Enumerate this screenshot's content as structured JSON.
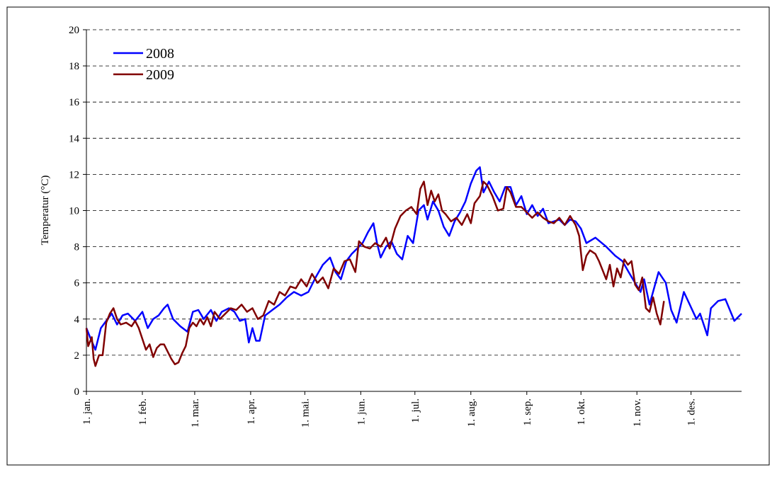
{
  "chart_data": {
    "type": "line",
    "y_label": "Temperatur (°C)",
    "ylim": [
      0,
      20
    ],
    "yticks": [
      0,
      2,
      4,
      6,
      8,
      10,
      12,
      14,
      16,
      18,
      20
    ],
    "xlim": [
      1,
      364
    ],
    "xticks": [
      {
        "value": 1,
        "label": "1. jan."
      },
      {
        "value": 32,
        "label": "1. feb."
      },
      {
        "value": 61,
        "label": "1. mar."
      },
      {
        "value": 92,
        "label": "1. apr."
      },
      {
        "value": 122,
        "label": "1. mai."
      },
      {
        "value": 153,
        "label": "1. jun."
      },
      {
        "value": 183,
        "label": "1. jul."
      },
      {
        "value": 214,
        "label": "1. aug."
      },
      {
        "value": 245,
        "label": "1. sep."
      },
      {
        "value": 275,
        "label": "1. okt."
      },
      {
        "value": 306,
        "label": "1. nov."
      },
      {
        "value": 336,
        "label": "1. des."
      }
    ],
    "grid": true,
    "legend": "upper left",
    "series": [
      {
        "name": "2008",
        "color": "#0000ff",
        "x": [
          1,
          3,
          6,
          9,
          12,
          15,
          18,
          21,
          24,
          28,
          32,
          35,
          38,
          41,
          44,
          46,
          49,
          53,
          57,
          60,
          63,
          66,
          70,
          73,
          76,
          80,
          83,
          86,
          89,
          91,
          93,
          95,
          97,
          100,
          104,
          108,
          112,
          116,
          120,
          124,
          128,
          132,
          136,
          139,
          142,
          145,
          148,
          151,
          154,
          157,
          160,
          162,
          164,
          167,
          170,
          173,
          176,
          179,
          182,
          185,
          188,
          190,
          193,
          196,
          199,
          202,
          205,
          208,
          211,
          214,
          217,
          219,
          221,
          224,
          227,
          230,
          233,
          236,
          239,
          242,
          245,
          248,
          251,
          254,
          257,
          260,
          263,
          266,
          269,
          272,
          275,
          278,
          283,
          289,
          294,
          298,
          302,
          308,
          310,
          313,
          318,
          322,
          325,
          328,
          332,
          339,
          341,
          345,
          347,
          351,
          355,
          360,
          364
        ],
        "values": [
          3.5,
          3.0,
          2.3,
          3.5,
          3.9,
          4.3,
          3.7,
          4.2,
          4.3,
          3.9,
          4.4,
          3.5,
          4.0,
          4.2,
          4.6,
          4.8,
          4.0,
          3.6,
          3.3,
          4.4,
          4.5,
          4.0,
          4.5,
          3.9,
          4.4,
          4.6,
          4.4,
          3.9,
          4.0,
          2.7,
          3.5,
          2.8,
          2.8,
          4.2,
          4.5,
          4.8,
          5.2,
          5.5,
          5.3,
          5.5,
          6.3,
          7.0,
          7.4,
          6.6,
          6.2,
          7.2,
          7.6,
          7.9,
          8.2,
          8.8,
          9.3,
          8.2,
          7.4,
          8.0,
          8.3,
          7.6,
          7.3,
          8.6,
          8.2,
          10.0,
          10.3,
          9.5,
          10.5,
          10.0,
          9.1,
          8.6,
          9.4,
          9.9,
          10.5,
          11.5,
          12.2,
          12.4,
          11.0,
          11.6,
          11.0,
          10.5,
          11.3,
          11.3,
          10.3,
          10.8,
          9.8,
          10.3,
          9.7,
          10.1,
          9.3,
          9.4,
          9.5,
          9.2,
          9.5,
          9.4,
          9.0,
          8.2,
          8.5,
          8.0,
          7.5,
          7.2,
          6.5,
          5.5,
          6.2,
          4.8,
          6.6,
          6.0,
          4.5,
          3.8,
          5.5,
          4.0,
          4.3,
          3.1,
          4.6,
          5.0,
          5.1,
          3.9,
          4.3
        ]
      },
      {
        "name": "2009",
        "color": "#800000",
        "x": [
          1,
          2,
          4,
          5,
          6,
          8,
          10,
          12,
          14,
          16,
          18,
          20,
          23,
          26,
          28,
          30,
          32,
          34,
          36,
          38,
          40,
          42,
          44,
          46,
          48,
          50,
          52,
          54,
          56,
          58,
          60,
          62,
          64,
          66,
          68,
          70,
          72,
          75,
          78,
          81,
          84,
          87,
          90,
          93,
          96,
          99,
          102,
          105,
          108,
          111,
          114,
          117,
          120,
          123,
          126,
          129,
          132,
          135,
          138,
          141,
          144,
          147,
          150,
          152,
          155,
          158,
          161,
          164,
          167,
          169,
          172,
          175,
          178,
          181,
          184,
          186,
          188,
          190,
          192,
          194,
          196,
          198,
          200,
          203,
          206,
          209,
          212,
          214,
          216,
          219,
          221,
          223,
          226,
          229,
          232,
          234,
          236,
          239,
          242,
          245,
          248,
          251,
          254,
          257,
          260,
          263,
          266,
          269,
          272,
          274,
          276,
          278,
          280,
          283,
          285,
          287,
          289,
          291,
          293,
          295,
          297,
          299,
          301,
          303,
          305,
          307,
          309,
          311,
          313,
          315,
          317,
          319,
          321
        ],
        "values": [
          3.5,
          2.5,
          3.0,
          1.8,
          1.4,
          2.0,
          2.0,
          3.8,
          4.3,
          4.6,
          4.0,
          3.7,
          3.8,
          3.6,
          3.9,
          3.5,
          2.9,
          2.3,
          2.6,
          1.9,
          2.4,
          2.6,
          2.6,
          2.2,
          1.8,
          1.5,
          1.6,
          2.1,
          2.5,
          3.5,
          3.8,
          3.6,
          4.0,
          3.7,
          4.1,
          3.6,
          4.4,
          4.0,
          4.3,
          4.6,
          4.5,
          4.8,
          4.4,
          4.6,
          4.0,
          4.2,
          5.0,
          4.8,
          5.5,
          5.3,
          5.8,
          5.7,
          6.2,
          5.8,
          6.5,
          6.0,
          6.3,
          5.7,
          6.8,
          6.5,
          7.2,
          7.3,
          6.6,
          8.3,
          8.0,
          7.9,
          8.2,
          8.0,
          8.5,
          7.9,
          9.0,
          9.7,
          10.0,
          10.2,
          9.8,
          11.2,
          11.6,
          10.3,
          11.1,
          10.5,
          10.9,
          10.0,
          9.8,
          9.4,
          9.6,
          9.2,
          9.8,
          9.3,
          10.4,
          10.8,
          11.6,
          11.4,
          10.8,
          10.0,
          10.1,
          11.3,
          11.0,
          10.2,
          10.2,
          9.9,
          9.6,
          9.9,
          9.6,
          9.4,
          9.3,
          9.6,
          9.2,
          9.7,
          9.2,
          8.6,
          6.7,
          7.5,
          7.8,
          7.6,
          7.2,
          6.7,
          6.2,
          7.0,
          5.8,
          6.8,
          6.3,
          7.3,
          7.0,
          7.2,
          5.9,
          5.6,
          6.3,
          4.6,
          4.4,
          5.2,
          4.3,
          3.7,
          5.0
        ]
      }
    ]
  }
}
